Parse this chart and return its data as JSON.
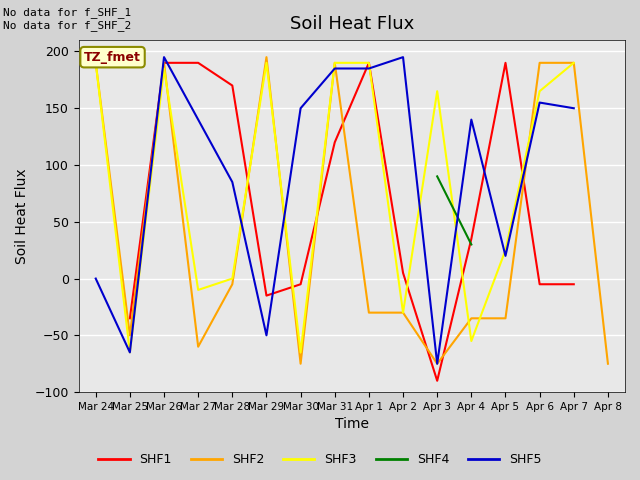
{
  "title": "Soil Heat Flux",
  "ylabel": "Soil Heat Flux",
  "xlabel": "Time",
  "ylim": [
    -100,
    210
  ],
  "yticks": [
    -100,
    -50,
    0,
    50,
    100,
    150,
    200
  ],
  "annotation_text": "No data for f_SHF_1\nNo data for f_SHF_2",
  "legend_label": "TZ_fmet",
  "legend_box_color": "#ffffcc",
  "legend_box_edge": "#8B8B00",
  "legend_text_color": "#8B0000",
  "background_color": "#d3d3d3",
  "plot_bg": "#e8e8e8",
  "x_labels": [
    "Mar 24",
    "Mar 25",
    "Mar 26",
    "Mar 27",
    "Mar 28",
    "Mar 29",
    "Mar 30",
    "Mar 31",
    "Apr 1",
    "Apr 2",
    "Apr 3",
    "Apr 4",
    "Apr 5",
    "Apr 6",
    "Apr 7",
    "Apr 8"
  ],
  "series": {
    "SHF1": {
      "color": "#ff0000",
      "x": [
        1,
        2,
        3,
        4,
        5,
        6,
        7,
        8,
        9,
        10,
        11,
        12,
        13,
        14
      ],
      "y": [
        -35,
        190,
        190,
        170,
        -15,
        -5,
        120,
        190,
        5,
        -90,
        35,
        190,
        -5,
        -5
      ]
    },
    "SHF2": {
      "color": "#ffa500",
      "x": [
        0,
        1,
        2,
        3,
        4,
        5,
        6,
        7,
        8,
        9,
        10,
        11,
        12,
        13,
        14,
        15
      ],
      "y": [
        190,
        -50,
        190,
        -60,
        -5,
        195,
        -75,
        190,
        -30,
        -30,
        -75,
        -35,
        -35,
        190,
        190,
        -75
      ]
    },
    "SHF3": {
      "color": "#ffff00",
      "x": [
        0,
        1,
        2,
        3,
        4,
        5,
        6,
        7,
        8,
        9,
        10,
        11,
        12,
        13,
        14
      ],
      "y": [
        190,
        -65,
        185,
        -10,
        0,
        190,
        -65,
        190,
        190,
        -30,
        165,
        -55,
        25,
        165,
        190
      ]
    },
    "SHF4": {
      "color": "#008000",
      "x": [
        10,
        11
      ],
      "y": [
        90,
        30
      ]
    },
    "SHF5": {
      "color": "#0000cd",
      "x": [
        0,
        1,
        2,
        3,
        4,
        5,
        6,
        7,
        8,
        9,
        10,
        11,
        12,
        13,
        14
      ],
      "y": [
        0,
        -65,
        195,
        140,
        85,
        -50,
        150,
        185,
        185,
        195,
        -75,
        140,
        20,
        155,
        150
      ]
    }
  }
}
